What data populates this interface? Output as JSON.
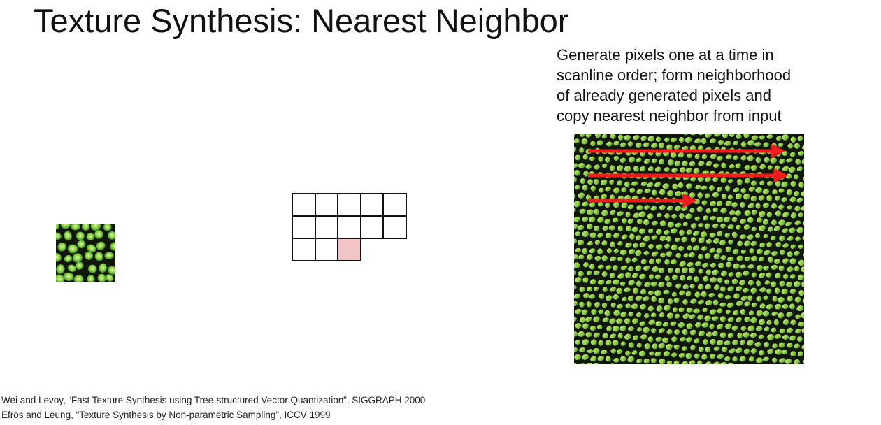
{
  "slide": {
    "title": "Texture Synthesis: Nearest Neighbor",
    "description_lines": [
      "Generate pixels one at a time in",
      "scanline order; form neighborhood",
      "of already generated pixels and",
      "copy nearest neighbor from input"
    ],
    "citations": [
      "Wei and Levoy, “Fast Texture Synthesis using Tree-structured Vector Quantization”, SIGGRAPH 2000",
      "Efros and Leung, “Texture Synthesis by Non-parametric Sampling”, ICCV 1999"
    ]
  },
  "neighborhood": {
    "rows": [
      [
        "filled",
        "filled",
        "filled",
        "filled",
        "filled"
      ],
      [
        "filled",
        "filled",
        "filled",
        "filled",
        "filled"
      ],
      [
        "filled",
        "filled",
        "current"
      ]
    ]
  },
  "colors": {
    "current_pixel": "#f1c4c6",
    "grid_line": "#111111",
    "scan_arrow": "#ee1c1c",
    "texture_cell_light": "#c6e86a",
    "texture_cell_green": "#5ea83a",
    "texture_gap": "#10180c"
  },
  "icons": {
    "input_texture": "green-cellular-texture-sample",
    "output_texture": "synthesized-green-cellular-texture",
    "scan_arrows": "red-scanline-arrows"
  }
}
